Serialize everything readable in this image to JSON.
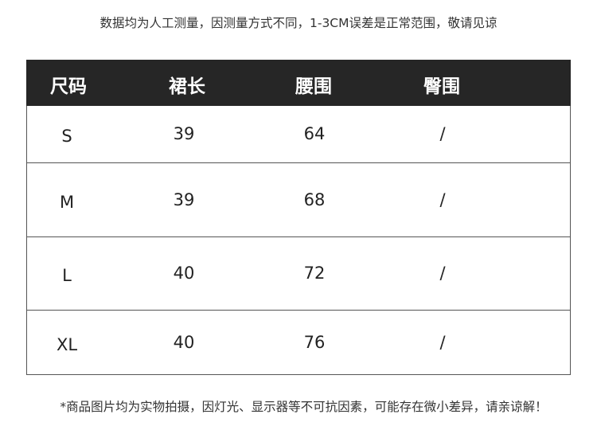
{
  "notes": {
    "top": "数据均为人工测量，因测量方式不同，1-3CM误差是正常范围，敬请见谅",
    "bottom": "*商品图片均为实物拍摄，因灯光、显示器等不可抗因素，可能存在微小差异，请亲谅解！"
  },
  "table": {
    "headers": [
      "尺码",
      "裙长",
      "腰围",
      "臀围"
    ],
    "rows": [
      [
        "S",
        "39",
        "64",
        "/"
      ],
      [
        "M",
        "39",
        "68",
        "/"
      ],
      [
        "L",
        "40",
        "72",
        "/"
      ],
      [
        "XL",
        "40",
        "76",
        "/"
      ]
    ],
    "header_bg": "#262626"
  }
}
